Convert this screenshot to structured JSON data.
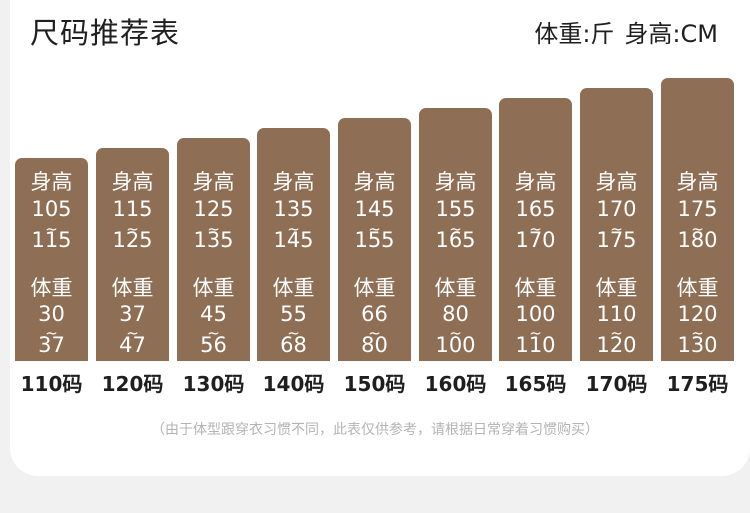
{
  "header": {
    "title": "尺码推荐表",
    "unit_weight": "体重:斤",
    "unit_height": "身高:CM"
  },
  "labels": {
    "height": "身高",
    "weight": "体重",
    "tilde": "~"
  },
  "sizes": [
    {
      "size": "110码",
      "height_min": "105",
      "height_max": "115",
      "weight_min": "30",
      "weight_max": "37"
    },
    {
      "size": "120码",
      "height_min": "115",
      "height_max": "125",
      "weight_min": "37",
      "weight_max": "47"
    },
    {
      "size": "130码",
      "height_min": "125",
      "height_max": "135",
      "weight_min": "45",
      "weight_max": "56"
    },
    {
      "size": "140码",
      "height_min": "135",
      "height_max": "145",
      "weight_min": "55",
      "weight_max": "68"
    },
    {
      "size": "150码",
      "height_min": "145",
      "height_max": "155",
      "weight_min": "66",
      "weight_max": "80"
    },
    {
      "size": "160码",
      "height_min": "155",
      "height_max": "165",
      "weight_min": "80",
      "weight_max": "100"
    },
    {
      "size": "165码",
      "height_min": "165",
      "height_max": "170",
      "weight_min": "100",
      "weight_max": "110"
    },
    {
      "size": "170码",
      "height_min": "170",
      "height_max": "175",
      "weight_min": "110",
      "weight_max": "120"
    },
    {
      "size": "175码",
      "height_min": "175",
      "height_max": "180",
      "weight_min": "120",
      "weight_max": "130"
    }
  ],
  "footer": {
    "note": "（由于体型跟穿衣习惯不同，此表仅供参考，请根据日常穿着习惯购买）"
  }
}
